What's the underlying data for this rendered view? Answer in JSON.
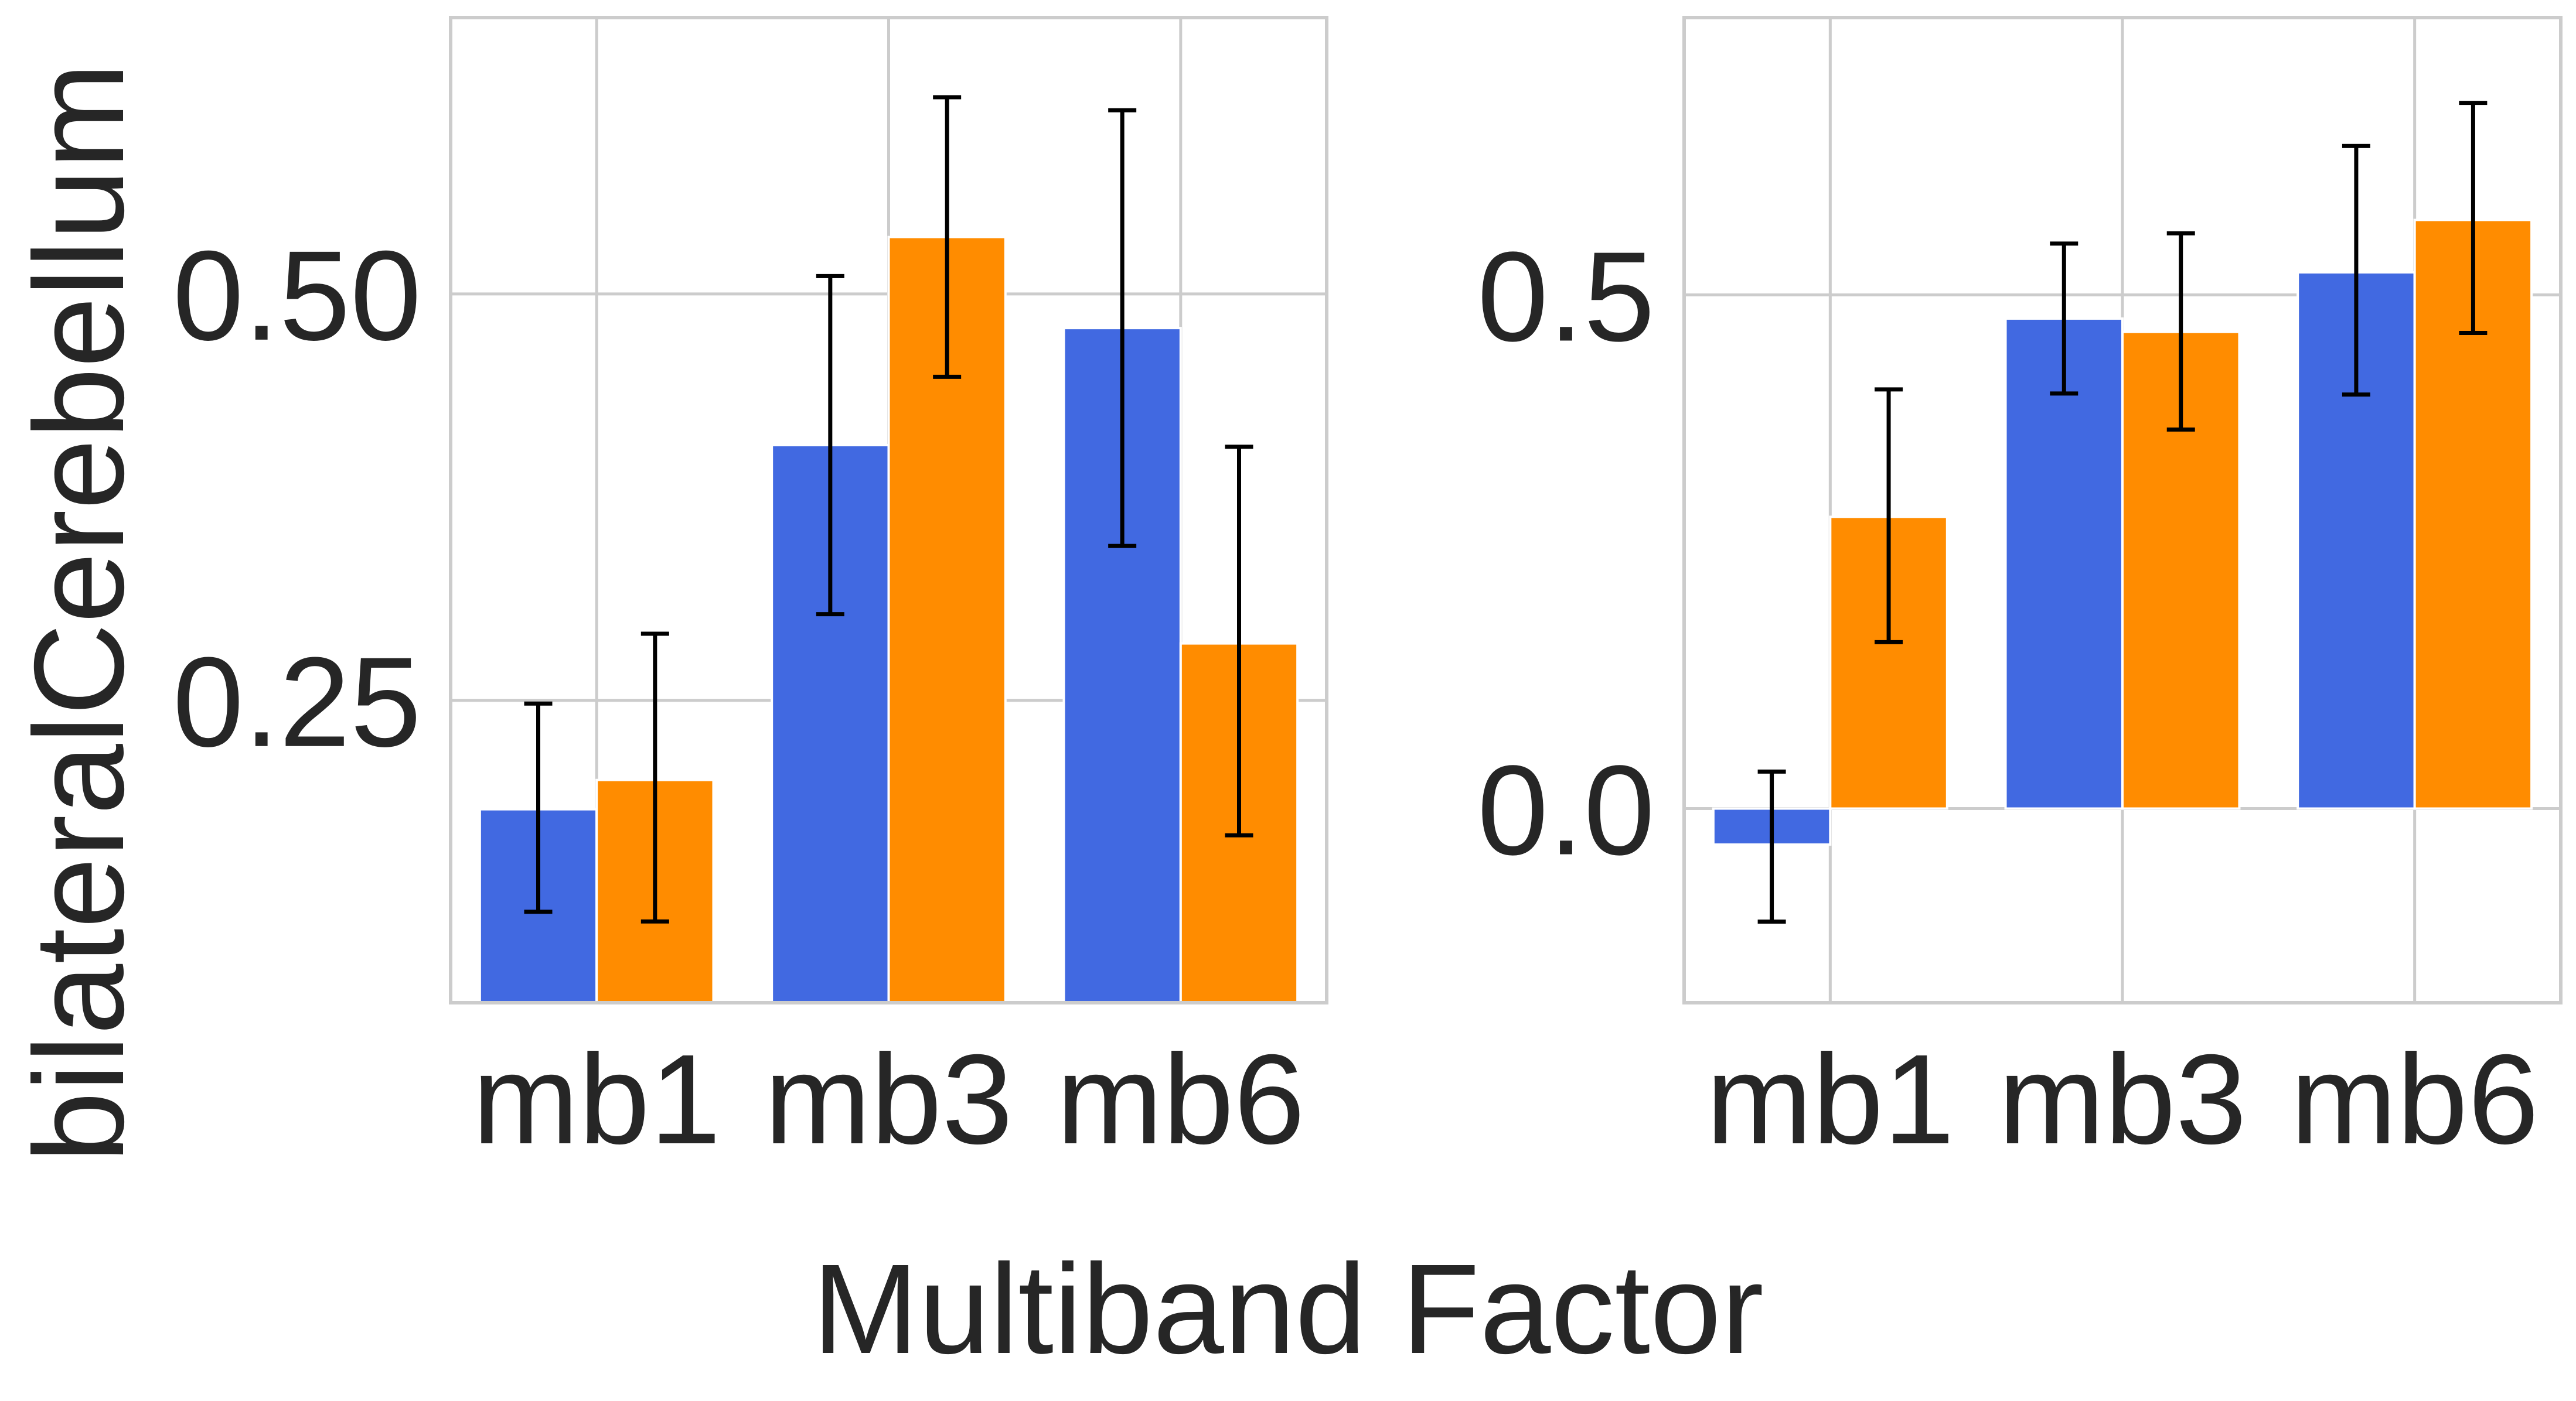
{
  "figure": {
    "xlabel": "Multiband Factor",
    "ylabel": "bilateralCerebellum"
  },
  "colors": {
    "series_a": "#4169e1",
    "series_b": "#ff8c00",
    "grid": "#cccccc",
    "axes_edge": "#cccccc",
    "error_bar": "#000000",
    "text": "#262626"
  },
  "chart_data": [
    {
      "type": "bar",
      "categories": [
        "mb1",
        "mb3",
        "mb6"
      ],
      "ylim": [
        0.064,
        0.67
      ],
      "yticks": [
        0.25,
        0.5
      ],
      "ytick_labels": [
        "0.25",
        "0.50"
      ],
      "grid": true,
      "series": [
        {
          "color": "#4169e1",
          "values": [
            0.183,
            0.407,
            0.479
          ],
          "err_low": [
            0.12,
            0.303,
            0.345
          ],
          "err_high": [
            0.248,
            0.511,
            0.613
          ]
        },
        {
          "color": "#ff8c00",
          "values": [
            0.201,
            0.535,
            0.285
          ],
          "err_low": [
            0.114,
            0.449,
            0.167
          ],
          "err_high": [
            0.291,
            0.621,
            0.406
          ]
        }
      ]
    },
    {
      "type": "bar",
      "categories": [
        "mb1",
        "mb3",
        "mb6"
      ],
      "ylim": [
        -0.189,
        0.77
      ],
      "yticks": [
        0.0,
        0.5
      ],
      "ytick_labels": [
        "0.0",
        "0.5"
      ],
      "grid": true,
      "series": [
        {
          "color": "#4169e1",
          "values": [
            -0.035,
            0.477,
            0.522
          ],
          "err_low": [
            -0.11,
            0.404,
            0.403
          ],
          "err_high": [
            0.036,
            0.55,
            0.645
          ]
        },
        {
          "color": "#ff8c00",
          "values": [
            0.284,
            0.464,
            0.573
          ],
          "err_low": [
            0.162,
            0.369,
            0.463
          ],
          "err_high": [
            0.408,
            0.56,
            0.687
          ]
        }
      ]
    }
  ]
}
